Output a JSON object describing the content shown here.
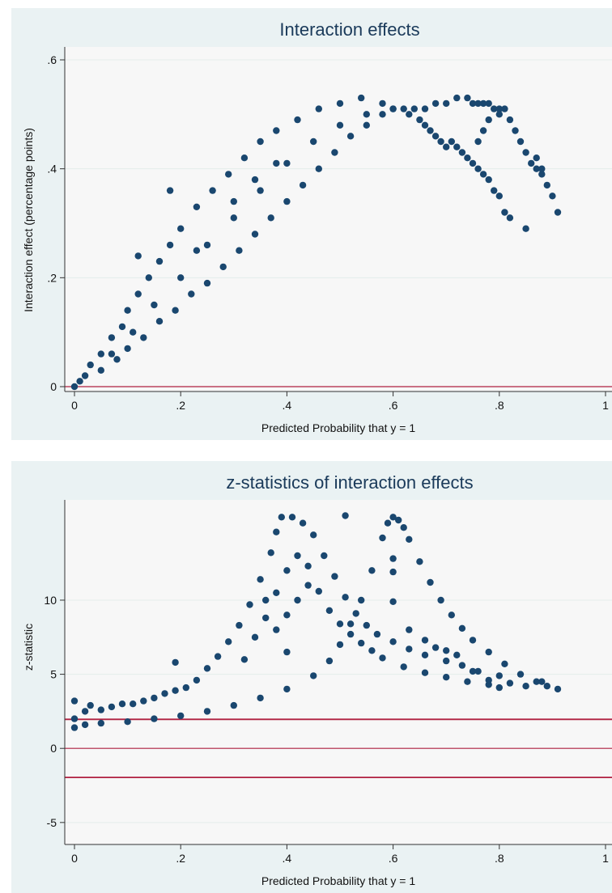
{
  "colors": {
    "background": "#eaf2f3",
    "plot_region": "#f7f7f7",
    "marker": "#1a476f",
    "reference_line": "#b02040",
    "grid": "#e4eceb",
    "title": "#1a3a5a"
  },
  "chart_data": [
    {
      "type": "scatter",
      "title": "Interaction effects",
      "xlabel": "Predicted Probability that y = 1",
      "ylabel": "Interaction effect (percentage points)",
      "xlim": [
        0,
        1
      ],
      "ylim": [
        0,
        0.6
      ],
      "xticks": [
        0,
        0.2,
        0.4,
        0.6,
        0.8,
        1
      ],
      "xtick_labels": [
        "0",
        ".2",
        ".4",
        ".6",
        ".8",
        "1"
      ],
      "yticks": [
        0,
        0.2,
        0.4,
        0.6
      ],
      "ytick_labels": [
        "0",
        ".2",
        ".4",
        ".6"
      ],
      "grid": true,
      "reference_lines": [
        0
      ],
      "points": [
        [
          0.0,
          0.0
        ],
        [
          0.01,
          0.01
        ],
        [
          0.02,
          0.02
        ],
        [
          0.03,
          0.04
        ],
        [
          0.05,
          0.06
        ],
        [
          0.07,
          0.09
        ],
        [
          0.09,
          0.11
        ],
        [
          0.1,
          0.14
        ],
        [
          0.12,
          0.17
        ],
        [
          0.14,
          0.2
        ],
        [
          0.16,
          0.23
        ],
        [
          0.18,
          0.26
        ],
        [
          0.2,
          0.29
        ],
        [
          0.23,
          0.33
        ],
        [
          0.26,
          0.36
        ],
        [
          0.29,
          0.39
        ],
        [
          0.32,
          0.42
        ],
        [
          0.35,
          0.45
        ],
        [
          0.38,
          0.47
        ],
        [
          0.42,
          0.49
        ],
        [
          0.46,
          0.51
        ],
        [
          0.5,
          0.52
        ],
        [
          0.54,
          0.53
        ],
        [
          0.58,
          0.52
        ],
        [
          0.62,
          0.51
        ],
        [
          0.05,
          0.03
        ],
        [
          0.08,
          0.05
        ],
        [
          0.1,
          0.07
        ],
        [
          0.13,
          0.09
        ],
        [
          0.16,
          0.12
        ],
        [
          0.19,
          0.14
        ],
        [
          0.22,
          0.17
        ],
        [
          0.25,
          0.19
        ],
        [
          0.28,
          0.22
        ],
        [
          0.31,
          0.25
        ],
        [
          0.34,
          0.28
        ],
        [
          0.37,
          0.31
        ],
        [
          0.4,
          0.34
        ],
        [
          0.43,
          0.37
        ],
        [
          0.46,
          0.4
        ],
        [
          0.49,
          0.43
        ],
        [
          0.52,
          0.46
        ],
        [
          0.55,
          0.48
        ],
        [
          0.58,
          0.5
        ],
        [
          0.6,
          0.51
        ],
        [
          0.07,
          0.06
        ],
        [
          0.11,
          0.1
        ],
        [
          0.15,
          0.15
        ],
        [
          0.2,
          0.2
        ],
        [
          0.25,
          0.26
        ],
        [
          0.3,
          0.31
        ],
        [
          0.35,
          0.36
        ],
        [
          0.4,
          0.41
        ],
        [
          0.45,
          0.45
        ],
        [
          0.5,
          0.48
        ],
        [
          0.55,
          0.5
        ],
        [
          0.6,
          0.51
        ],
        [
          0.3,
          0.34
        ],
        [
          0.34,
          0.38
        ],
        [
          0.38,
          0.41
        ],
        [
          0.18,
          0.36
        ],
        [
          0.12,
          0.24
        ],
        [
          0.23,
          0.25
        ],
        [
          0.64,
          0.51
        ],
        [
          0.66,
          0.51
        ],
        [
          0.68,
          0.52
        ],
        [
          0.7,
          0.52
        ],
        [
          0.72,
          0.53
        ],
        [
          0.74,
          0.53
        ],
        [
          0.75,
          0.52
        ],
        [
          0.76,
          0.52
        ],
        [
          0.77,
          0.52
        ],
        [
          0.78,
          0.52
        ],
        [
          0.79,
          0.51
        ],
        [
          0.8,
          0.51
        ],
        [
          0.81,
          0.51
        ],
        [
          0.63,
          0.5
        ],
        [
          0.65,
          0.49
        ],
        [
          0.66,
          0.48
        ],
        [
          0.67,
          0.47
        ],
        [
          0.68,
          0.46
        ],
        [
          0.69,
          0.45
        ],
        [
          0.7,
          0.44
        ],
        [
          0.71,
          0.45
        ],
        [
          0.72,
          0.44
        ],
        [
          0.73,
          0.43
        ],
        [
          0.74,
          0.42
        ],
        [
          0.75,
          0.41
        ],
        [
          0.76,
          0.4
        ],
        [
          0.77,
          0.39
        ],
        [
          0.78,
          0.38
        ],
        [
          0.79,
          0.36
        ],
        [
          0.8,
          0.35
        ],
        [
          0.76,
          0.45
        ],
        [
          0.77,
          0.47
        ],
        [
          0.78,
          0.49
        ],
        [
          0.8,
          0.5
        ],
        [
          0.82,
          0.49
        ],
        [
          0.83,
          0.47
        ],
        [
          0.84,
          0.45
        ],
        [
          0.85,
          0.43
        ],
        [
          0.86,
          0.41
        ],
        [
          0.87,
          0.4
        ],
        [
          0.88,
          0.39
        ],
        [
          0.89,
          0.37
        ],
        [
          0.9,
          0.35
        ],
        [
          0.91,
          0.32
        ],
        [
          0.87,
          0.42
        ],
        [
          0.88,
          0.4
        ],
        [
          0.81,
          0.32
        ],
        [
          0.82,
          0.31
        ],
        [
          0.85,
          0.29
        ]
      ]
    },
    {
      "type": "scatter",
      "title": "z-statistics of interaction effects",
      "xlabel": "Predicted Probability that y = 1",
      "ylabel": "z-statistic",
      "xlim": [
        0,
        1
      ],
      "ylim": [
        -5.5,
        16
      ],
      "xticks": [
        0,
        0.2,
        0.4,
        0.6,
        0.8,
        1
      ],
      "xtick_labels": [
        "0",
        ".2",
        ".4",
        ".6",
        ".8",
        "1"
      ],
      "yticks": [
        -5,
        0,
        5,
        10
      ],
      "ytick_labels": [
        "-5",
        "0",
        "5",
        "10"
      ],
      "grid": true,
      "reference_lines": [
        -1.96,
        0,
        1.96
      ],
      "points": [
        [
          0.0,
          2.0
        ],
        [
          0.0,
          3.2
        ],
        [
          0.0,
          1.4
        ],
        [
          0.02,
          2.5
        ],
        [
          0.03,
          2.9
        ],
        [
          0.05,
          2.6
        ],
        [
          0.07,
          2.8
        ],
        [
          0.09,
          3.0
        ],
        [
          0.11,
          3.0
        ],
        [
          0.13,
          3.2
        ],
        [
          0.15,
          3.4
        ],
        [
          0.17,
          3.7
        ],
        [
          0.19,
          3.9
        ],
        [
          0.21,
          4.1
        ],
        [
          0.23,
          4.6
        ],
        [
          0.25,
          5.4
        ],
        [
          0.27,
          6.2
        ],
        [
          0.29,
          7.2
        ],
        [
          0.31,
          8.3
        ],
        [
          0.33,
          9.7
        ],
        [
          0.35,
          11.4
        ],
        [
          0.37,
          13.2
        ],
        [
          0.38,
          14.6
        ],
        [
          0.39,
          15.6
        ],
        [
          0.41,
          15.6
        ],
        [
          0.43,
          15.2
        ],
        [
          0.45,
          14.4
        ],
        [
          0.47,
          13.0
        ],
        [
          0.49,
          11.6
        ],
        [
          0.51,
          10.2
        ],
        [
          0.53,
          9.1
        ],
        [
          0.55,
          8.3
        ],
        [
          0.57,
          7.7
        ],
        [
          0.6,
          7.2
        ],
        [
          0.63,
          6.7
        ],
        [
          0.66,
          6.3
        ],
        [
          0.7,
          5.9
        ],
        [
          0.73,
          5.6
        ],
        [
          0.76,
          5.2
        ],
        [
          0.8,
          4.9
        ],
        [
          0.32,
          6.0
        ],
        [
          0.34,
          7.5
        ],
        [
          0.36,
          8.8
        ],
        [
          0.38,
          10.5
        ],
        [
          0.4,
          12.0
        ],
        [
          0.42,
          13.0
        ],
        [
          0.44,
          12.3
        ],
        [
          0.46,
          10.6
        ],
        [
          0.48,
          9.3
        ],
        [
          0.5,
          8.4
        ],
        [
          0.52,
          7.7
        ],
        [
          0.54,
          7.1
        ],
        [
          0.56,
          6.6
        ],
        [
          0.58,
          6.1
        ],
        [
          0.62,
          5.5
        ],
        [
          0.66,
          5.1
        ],
        [
          0.7,
          4.8
        ],
        [
          0.74,
          4.5
        ],
        [
          0.78,
          4.3
        ],
        [
          0.02,
          1.6
        ],
        [
          0.05,
          1.7
        ],
        [
          0.1,
          1.8
        ],
        [
          0.15,
          2.0
        ],
        [
          0.2,
          2.2
        ],
        [
          0.25,
          2.5
        ],
        [
          0.3,
          2.9
        ],
        [
          0.35,
          3.4
        ],
        [
          0.4,
          4.0
        ],
        [
          0.45,
          4.9
        ],
        [
          0.48,
          5.9
        ],
        [
          0.5,
          7.0
        ],
        [
          0.52,
          8.4
        ],
        [
          0.54,
          10.0
        ],
        [
          0.56,
          12.0
        ],
        [
          0.58,
          14.2
        ],
        [
          0.59,
          15.2
        ],
        [
          0.6,
          15.6
        ],
        [
          0.61,
          15.4
        ],
        [
          0.62,
          14.9
        ],
        [
          0.63,
          14.1
        ],
        [
          0.65,
          12.6
        ],
        [
          0.67,
          11.2
        ],
        [
          0.69,
          10.0
        ],
        [
          0.71,
          9.0
        ],
        [
          0.73,
          8.1
        ],
        [
          0.75,
          7.3
        ],
        [
          0.78,
          6.5
        ],
        [
          0.81,
          5.7
        ],
        [
          0.84,
          5.0
        ],
        [
          0.87,
          4.5
        ],
        [
          0.89,
          4.2
        ],
        [
          0.91,
          4.0
        ],
        [
          0.19,
          5.8
        ],
        [
          0.51,
          15.7
        ],
        [
          0.6,
          11.9
        ],
        [
          0.6,
          12.8
        ],
        [
          0.6,
          9.9
        ],
        [
          0.63,
          8.0
        ],
        [
          0.66,
          7.3
        ],
        [
          0.68,
          6.8
        ],
        [
          0.7,
          6.6
        ],
        [
          0.72,
          6.3
        ],
        [
          0.75,
          5.2
        ],
        [
          0.78,
          4.6
        ],
        [
          0.8,
          4.1
        ],
        [
          0.82,
          4.4
        ],
        [
          0.85,
          4.2
        ],
        [
          0.88,
          4.5
        ],
        [
          0.4,
          9.0
        ],
        [
          0.42,
          10.0
        ],
        [
          0.44,
          11.0
        ],
        [
          0.36,
          10.0
        ],
        [
          0.38,
          8.0
        ],
        [
          0.4,
          6.5
        ]
      ]
    }
  ]
}
